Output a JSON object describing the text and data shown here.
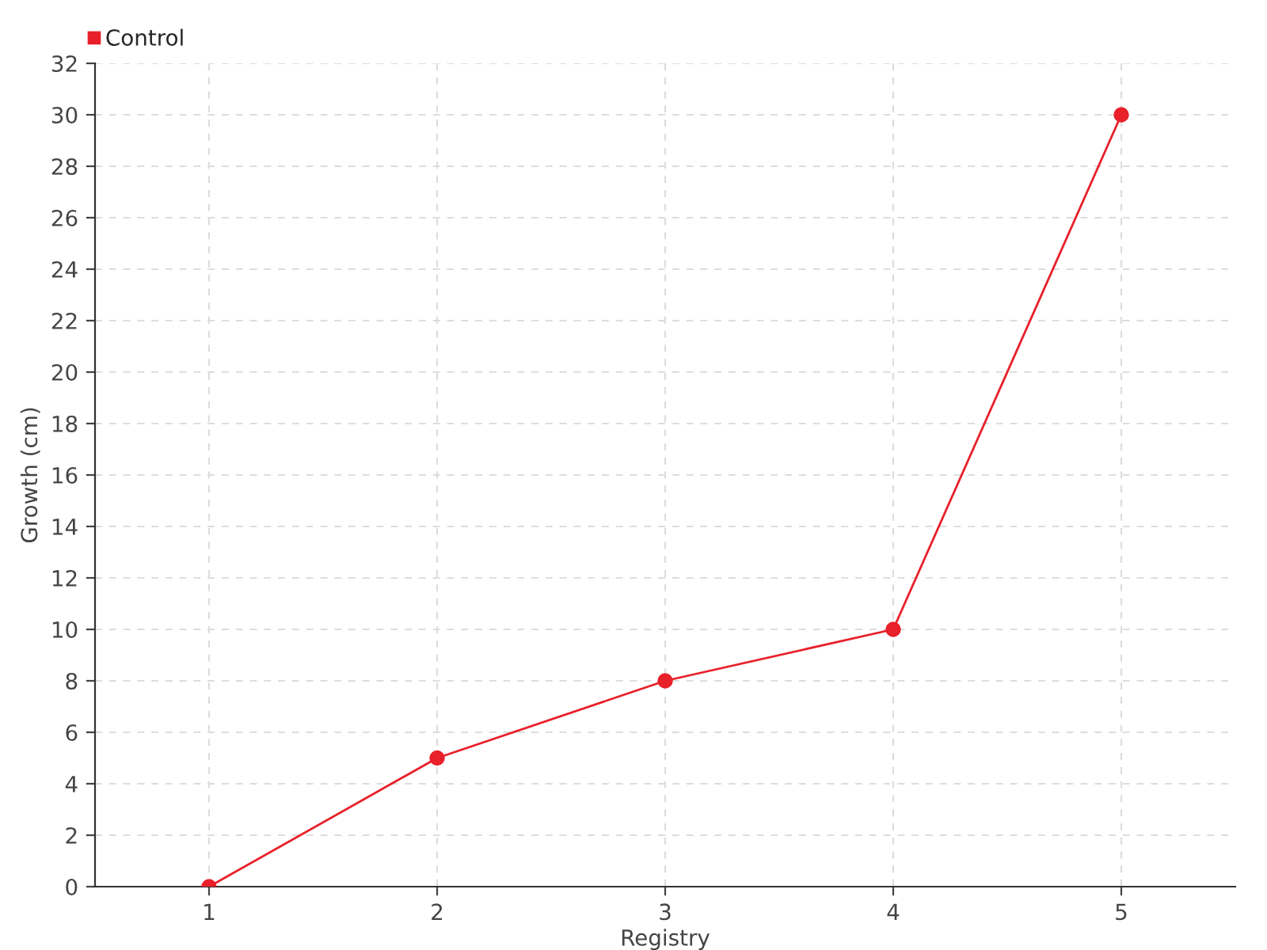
{
  "chart_data": {
    "type": "line",
    "xlabel": "Registry",
    "ylabel": "Growth (cm)",
    "x": [
      1,
      2,
      3,
      4,
      5
    ],
    "series": [
      {
        "name": "Control",
        "color": "#e8202a",
        "values": [
          0,
          5,
          8,
          10,
          30
        ]
      }
    ],
    "xlim": [
      0.5,
      5.5
    ],
    "xticks": [
      1,
      2,
      3,
      4,
      5
    ],
    "ylim": [
      0,
      32
    ],
    "yticks": [
      0,
      2,
      4,
      6,
      8,
      10,
      12,
      14,
      16,
      18,
      20,
      22,
      24,
      26,
      28,
      30,
      32
    ],
    "grid": true,
    "legend": "top left",
    "marker": "circle",
    "line_style": "solid"
  }
}
